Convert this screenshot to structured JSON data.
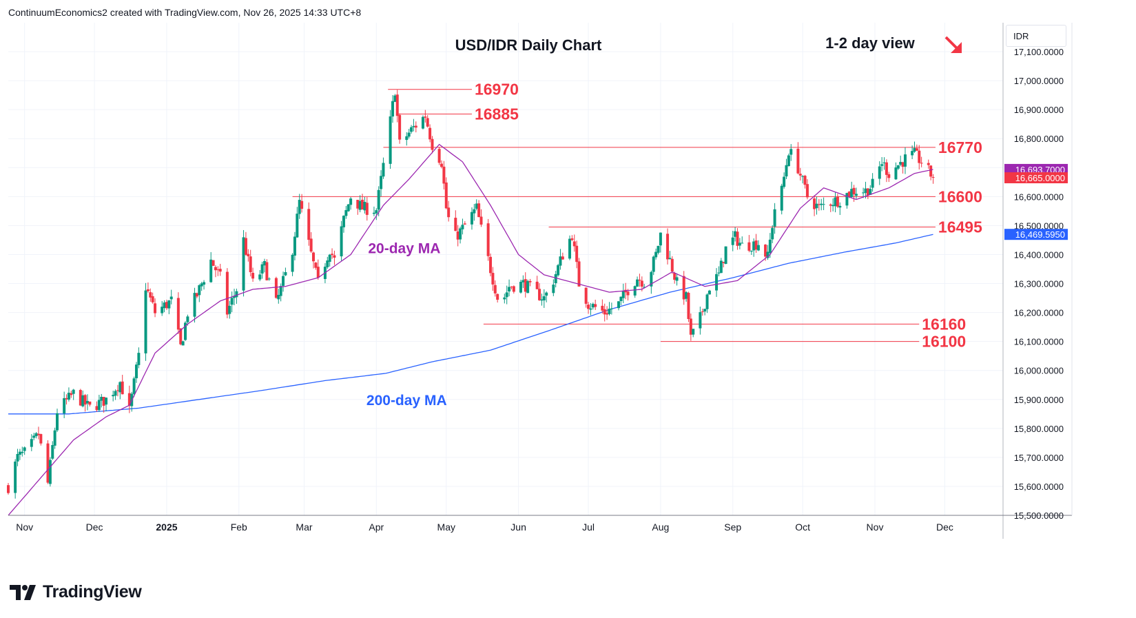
{
  "header": {
    "text": "ContinuumEconomics2 created with TradingView.com, Nov 26, 2025 14:33 UTC+8"
  },
  "brand": {
    "name": "TradingView"
  },
  "currency": "IDR",
  "colors": {
    "up": "#089981",
    "down": "#f23645",
    "ma20": "#9c27b0",
    "ma200": "#2962ff",
    "level": "#f23645",
    "grid": "#f0f3fa"
  },
  "chart_data": {
    "type": "candlestick",
    "title": "USD/IDR Daily Chart",
    "subtitle": "1-2 day view",
    "ylim": [
      15500,
      17200
    ],
    "yticks": [
      "17,100.0000",
      "17,000.0000",
      "16,900.0000",
      "16,800.0000",
      "16,700.0000",
      "16,600.0000",
      "16,500.0000",
      "16,400.0000",
      "16,300.0000",
      "16,200.0000",
      "16,100.0000",
      "16,000.0000",
      "15,900.0000",
      "15,800.0000",
      "15,700.0000",
      "15,600.0000",
      "15,500.0000"
    ],
    "xticks": [
      {
        "label": "Nov",
        "date": "2024-11-01"
      },
      {
        "label": "Dec",
        "date": "2024-12-01"
      },
      {
        "label": "2025",
        "date": "2025-01-01"
      },
      {
        "label": "Feb",
        "date": "2025-02-01"
      },
      {
        "label": "Mar",
        "date": "2025-03-01"
      },
      {
        "label": "Apr",
        "date": "2025-04-01"
      },
      {
        "label": "May",
        "date": "2025-05-01"
      },
      {
        "label": "Jun",
        "date": "2025-06-01"
      },
      {
        "label": "Jul",
        "date": "2025-07-01"
      },
      {
        "label": "Aug",
        "date": "2025-08-01"
      },
      {
        "label": "Sep",
        "date": "2025-09-01"
      },
      {
        "label": "Oct",
        "date": "2025-10-01"
      },
      {
        "label": "Nov",
        "date": "2025-11-01"
      },
      {
        "label": "Dec",
        "date": "2025-12-01"
      }
    ],
    "levels": [
      {
        "value": 16970,
        "label": "16970",
        "from": "2025-04-06",
        "to": "2025-05-12"
      },
      {
        "value": 16885,
        "label": "16885",
        "from": "2025-04-10",
        "to": "2025-05-12"
      },
      {
        "value": 16770,
        "label": "16770",
        "from": "2025-04-04",
        "to": "2025-11-27"
      },
      {
        "value": 16600,
        "label": "16600",
        "from": "2025-02-24",
        "to": "2025-11-27"
      },
      {
        "value": 16495,
        "label": "16495",
        "from": "2025-06-14",
        "to": "2025-11-27"
      },
      {
        "value": 16160,
        "label": "16160",
        "from": "2025-05-17",
        "to": "2025-11-20"
      },
      {
        "value": 16100,
        "label": "16100",
        "from": "2025-08-01",
        "to": "2025-11-20"
      }
    ],
    "price_badges": [
      {
        "value": 16693.7,
        "text": "16,693.7000",
        "color": "#9c27b0"
      },
      {
        "value": 16665.0,
        "text": "16,665.0000",
        "color": "#f23645"
      },
      {
        "value": 16469.595,
        "text": "16,469.5950",
        "color": "#2962ff"
      }
    ],
    "annotations": [
      {
        "text": "20-day MA",
        "date": "2025-04-13",
        "value": 16405,
        "color": "#9c27b0"
      },
      {
        "text": "200-day MA",
        "date": "2025-04-14",
        "value": 15880,
        "color": "#2962ff"
      }
    ],
    "ohlc_anchors": [
      [
        "2024-10-25",
        15600
      ],
      [
        "2024-10-29",
        15700
      ],
      [
        "2024-11-02",
        15720
      ],
      [
        "2024-11-07",
        15780
      ],
      [
        "2024-11-11",
        15610
      ],
      [
        "2024-11-15",
        15860
      ],
      [
        "2024-11-22",
        15920
      ],
      [
        "2024-11-29",
        15870
      ],
      [
        "2024-12-06",
        15900
      ],
      [
        "2024-12-12",
        15960
      ],
      [
        "2024-12-16",
        15860
      ],
      [
        "2024-12-20",
        16050
      ],
      [
        "2024-12-23",
        16290
      ],
      [
        "2024-12-27",
        16200
      ],
      [
        "2025-01-03",
        16240
      ],
      [
        "2025-01-07",
        16080
      ],
      [
        "2025-01-10",
        16200
      ],
      [
        "2025-01-14",
        16260
      ],
      [
        "2025-01-20",
        16380
      ],
      [
        "2025-01-24",
        16320
      ],
      [
        "2025-01-27",
        16200
      ],
      [
        "2025-01-31",
        16280
      ],
      [
        "2025-02-03",
        16450
      ],
      [
        "2025-02-07",
        16300
      ],
      [
        "2025-02-12",
        16360
      ],
      [
        "2025-02-17",
        16230
      ],
      [
        "2025-02-21",
        16330
      ],
      [
        "2025-02-24",
        16420
      ],
      [
        "2025-02-27",
        16580
      ],
      [
        "2025-03-04",
        16400
      ],
      [
        "2025-03-07",
        16300
      ],
      [
        "2025-03-12",
        16420
      ],
      [
        "2025-03-14",
        16380
      ],
      [
        "2025-03-18",
        16520
      ],
      [
        "2025-03-21",
        16600
      ],
      [
        "2025-03-26",
        16560
      ],
      [
        "2025-04-01",
        16555
      ],
      [
        "2025-04-07",
        16860
      ],
      [
        "2025-04-09",
        16970
      ],
      [
        "2025-04-11",
        16780
      ],
      [
        "2025-04-16",
        16830
      ],
      [
        "2025-04-22",
        16880
      ],
      [
        "2025-04-25",
        16780
      ],
      [
        "2025-04-29",
        16720
      ],
      [
        "2025-05-01",
        16560
      ],
      [
        "2025-05-04",
        16450
      ],
      [
        "2025-05-09",
        16500
      ],
      [
        "2025-05-14",
        16560
      ],
      [
        "2025-05-17",
        16450
      ],
      [
        "2025-05-20",
        16350
      ],
      [
        "2025-05-24",
        16220
      ],
      [
        "2025-05-28",
        16290
      ],
      [
        "2025-06-03",
        16300
      ],
      [
        "2025-06-08",
        16270
      ],
      [
        "2025-06-12",
        16250
      ],
      [
        "2025-06-15",
        16290
      ],
      [
        "2025-06-20",
        16400
      ],
      [
        "2025-06-24",
        16470
      ],
      [
        "2025-06-27",
        16300
      ],
      [
        "2025-07-01",
        16230
      ],
      [
        "2025-07-08",
        16200
      ],
      [
        "2025-07-14",
        16230
      ],
      [
        "2025-07-18",
        16280
      ],
      [
        "2025-07-22",
        16320
      ],
      [
        "2025-07-26",
        16300
      ],
      [
        "2025-07-30",
        16400
      ],
      [
        "2025-08-01",
        16470
      ],
      [
        "2025-08-05",
        16380
      ],
      [
        "2025-08-08",
        16300
      ],
      [
        "2025-08-12",
        16250
      ],
      [
        "2025-08-14",
        16110
      ],
      [
        "2025-08-18",
        16180
      ],
      [
        "2025-08-22",
        16290
      ],
      [
        "2025-08-26",
        16330
      ],
      [
        "2025-08-29",
        16420
      ],
      [
        "2025-09-02",
        16460
      ],
      [
        "2025-09-05",
        16430
      ],
      [
        "2025-09-12",
        16440
      ],
      [
        "2025-09-16",
        16390
      ],
      [
        "2025-09-19",
        16560
      ],
      [
        "2025-09-22",
        16620
      ],
      [
        "2025-09-25",
        16760
      ],
      [
        "2025-09-29",
        16700
      ],
      [
        "2025-10-03",
        16600
      ],
      [
        "2025-10-08",
        16560
      ],
      [
        "2025-10-12",
        16580
      ],
      [
        "2025-10-17",
        16590
      ],
      [
        "2025-10-22",
        16620
      ],
      [
        "2025-10-28",
        16620
      ],
      [
        "2025-10-31",
        16640
      ],
      [
        "2025-11-04",
        16720
      ],
      [
        "2025-11-07",
        16680
      ],
      [
        "2025-11-11",
        16710
      ],
      [
        "2025-11-14",
        16730
      ],
      [
        "2025-11-18",
        16745
      ],
      [
        "2025-11-21",
        16720
      ],
      [
        "2025-11-26",
        16665
      ]
    ],
    "ma20_anchors": [
      [
        "2024-10-25",
        15500
      ],
      [
        "2024-11-08",
        15630
      ],
      [
        "2024-11-22",
        15760
      ],
      [
        "2024-12-06",
        15840
      ],
      [
        "2024-12-16",
        15880
      ],
      [
        "2024-12-27",
        16060
      ],
      [
        "2025-01-10",
        16160
      ],
      [
        "2025-01-24",
        16240
      ],
      [
        "2025-02-07",
        16280
      ],
      [
        "2025-02-21",
        16290
      ],
      [
        "2025-03-07",
        16320
      ],
      [
        "2025-03-21",
        16400
      ],
      [
        "2025-04-04",
        16570
      ],
      [
        "2025-04-15",
        16660
      ],
      [
        "2025-04-28",
        16780
      ],
      [
        "2025-05-08",
        16720
      ],
      [
        "2025-05-20",
        16570
      ],
      [
        "2025-06-01",
        16400
      ],
      [
        "2025-06-12",
        16330
      ],
      [
        "2025-06-26",
        16300
      ],
      [
        "2025-07-10",
        16270
      ],
      [
        "2025-07-24",
        16280
      ],
      [
        "2025-08-06",
        16340
      ],
      [
        "2025-08-20",
        16290
      ],
      [
        "2025-09-03",
        16310
      ],
      [
        "2025-09-17",
        16400
      ],
      [
        "2025-09-30",
        16560
      ],
      [
        "2025-10-10",
        16630
      ],
      [
        "2025-10-24",
        16590
      ],
      [
        "2025-11-07",
        16630
      ],
      [
        "2025-11-18",
        16680
      ],
      [
        "2025-11-26",
        16693.7
      ]
    ],
    "ma200_anchors": [
      [
        "2024-10-25",
        15850
      ],
      [
        "2024-11-20",
        15850
      ],
      [
        "2024-12-20",
        15870
      ],
      [
        "2025-01-15",
        15900
      ],
      [
        "2025-02-10",
        15930
      ],
      [
        "2025-03-10",
        15965
      ],
      [
        "2025-04-05",
        15990
      ],
      [
        "2025-04-25",
        16030
      ],
      [
        "2025-05-20",
        16070
      ],
      [
        "2025-06-15",
        16140
      ],
      [
        "2025-07-10",
        16210
      ],
      [
        "2025-08-05",
        16270
      ],
      [
        "2025-09-01",
        16320
      ],
      [
        "2025-09-25",
        16370
      ],
      [
        "2025-10-20",
        16410
      ],
      [
        "2025-11-10",
        16440
      ],
      [
        "2025-11-26",
        16469.595
      ]
    ]
  }
}
